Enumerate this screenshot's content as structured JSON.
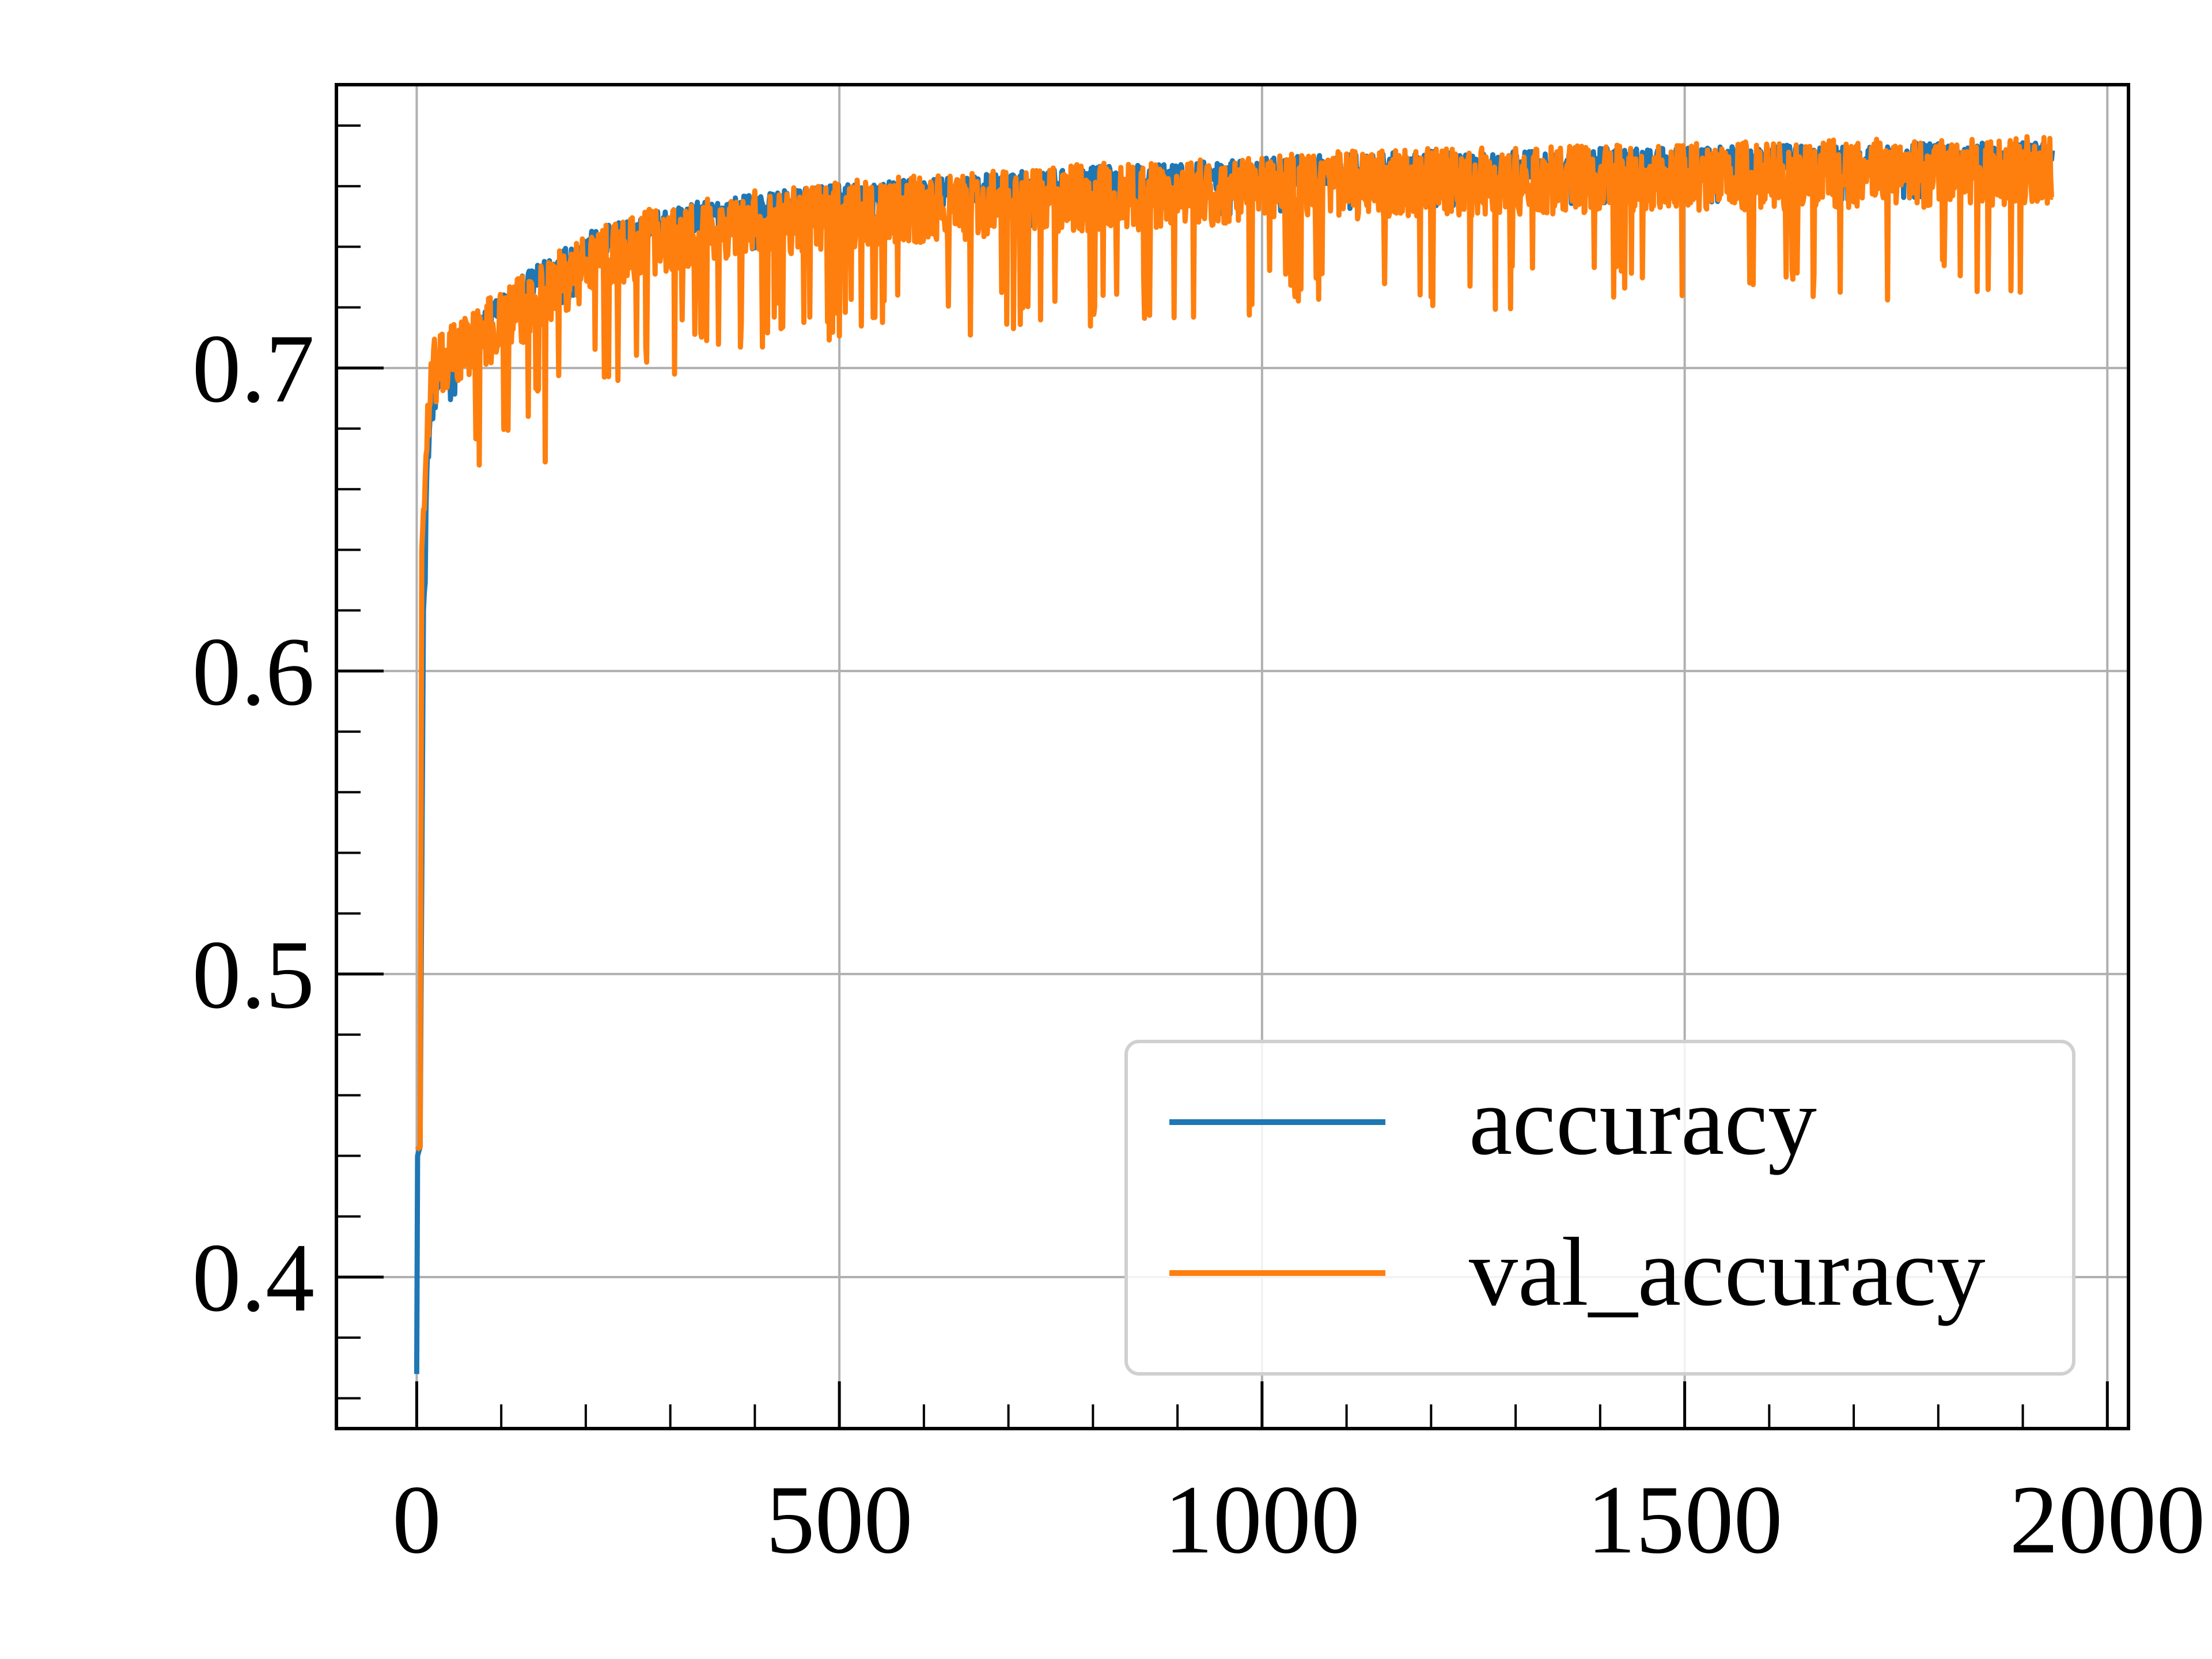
{
  "chart_data": {
    "type": "line",
    "title": "",
    "xlabel": "",
    "ylabel": "",
    "xlim": [
      -95,
      2025
    ],
    "ylim": [
      0.35,
      0.7935
    ],
    "x_ticks": [
      {
        "value": 0,
        "label": "0"
      },
      {
        "value": 500,
        "label": "500"
      },
      {
        "value": 1000,
        "label": "1000"
      },
      {
        "value": 1500,
        "label": "1500"
      },
      {
        "value": 2000,
        "label": "2000"
      }
    ],
    "y_ticks": [
      {
        "value": 0.4,
        "label": "0.4"
      },
      {
        "value": 0.5,
        "label": "0.5"
      },
      {
        "value": 0.6,
        "label": "0.6"
      },
      {
        "value": 0.7,
        "label": "0.7"
      }
    ],
    "x_minor_step": 100,
    "y_minor_step": 0.02,
    "grid": true,
    "legend": {
      "position": "lower-right"
    },
    "series": [
      {
        "name": "accuracy",
        "color": "#1f77b4",
        "points": [
          [
            0,
            0.368
          ],
          [
            1,
            0.44
          ],
          [
            4,
            0.443
          ],
          [
            8,
            0.62
          ],
          [
            12,
            0.665
          ],
          [
            16,
            0.685
          ],
          [
            25,
            0.695
          ],
          [
            40,
            0.703
          ],
          [
            60,
            0.71
          ],
          [
            80,
            0.715
          ],
          [
            100,
            0.72
          ],
          [
            130,
            0.727
          ],
          [
            160,
            0.733
          ],
          [
            200,
            0.74
          ],
          [
            250,
            0.745
          ],
          [
            300,
            0.749
          ],
          [
            400,
            0.753
          ],
          [
            500,
            0.756
          ],
          [
            600,
            0.758
          ],
          [
            700,
            0.76
          ],
          [
            800,
            0.762
          ],
          [
            900,
            0.763
          ],
          [
            1000,
            0.765
          ],
          [
            1100,
            0.766
          ],
          [
            1200,
            0.767
          ],
          [
            1300,
            0.767
          ],
          [
            1400,
            0.768
          ],
          [
            1500,
            0.768
          ],
          [
            1600,
            0.769
          ],
          [
            1700,
            0.769
          ],
          [
            1800,
            0.77
          ],
          [
            1900,
            0.77
          ],
          [
            1935,
            0.77
          ]
        ],
        "noise": 0.005
      },
      {
        "name": "val_accuracy",
        "color": "#ff7f0e",
        "points": [
          [
            0,
            0.442
          ],
          [
            4,
            0.443
          ],
          [
            6,
            0.64
          ],
          [
            9,
            0.66
          ],
          [
            14,
            0.69
          ],
          [
            20,
            0.7
          ],
          [
            30,
            0.702
          ],
          [
            50,
            0.708
          ],
          [
            80,
            0.713
          ],
          [
            120,
            0.72
          ],
          [
            160,
            0.728
          ],
          [
            200,
            0.735
          ],
          [
            250,
            0.741
          ],
          [
            300,
            0.745
          ],
          [
            400,
            0.749
          ],
          [
            500,
            0.752
          ],
          [
            600,
            0.754
          ],
          [
            700,
            0.756
          ],
          [
            800,
            0.758
          ],
          [
            900,
            0.759
          ],
          [
            1000,
            0.761
          ],
          [
            1100,
            0.762
          ],
          [
            1200,
            0.763
          ],
          [
            1300,
            0.763
          ],
          [
            1400,
            0.764
          ],
          [
            1500,
            0.765
          ],
          [
            1600,
            0.765
          ],
          [
            1700,
            0.766
          ],
          [
            1800,
            0.766
          ],
          [
            1900,
            0.767
          ],
          [
            1935,
            0.767
          ]
        ],
        "noise": 0.012,
        "dips": [
          [
            152,
            0.669
          ],
          [
            222,
            0.697
          ],
          [
            305,
            0.698
          ],
          [
            706,
            0.713
          ],
          [
            755,
            0.722
          ],
          [
            1046,
            0.726
          ],
          [
            1620,
            0.73
          ],
          [
            1897,
            0.725
          ],
          [
            1320,
            0.733
          ],
          [
            860,
            0.73
          ]
        ]
      }
    ]
  }
}
